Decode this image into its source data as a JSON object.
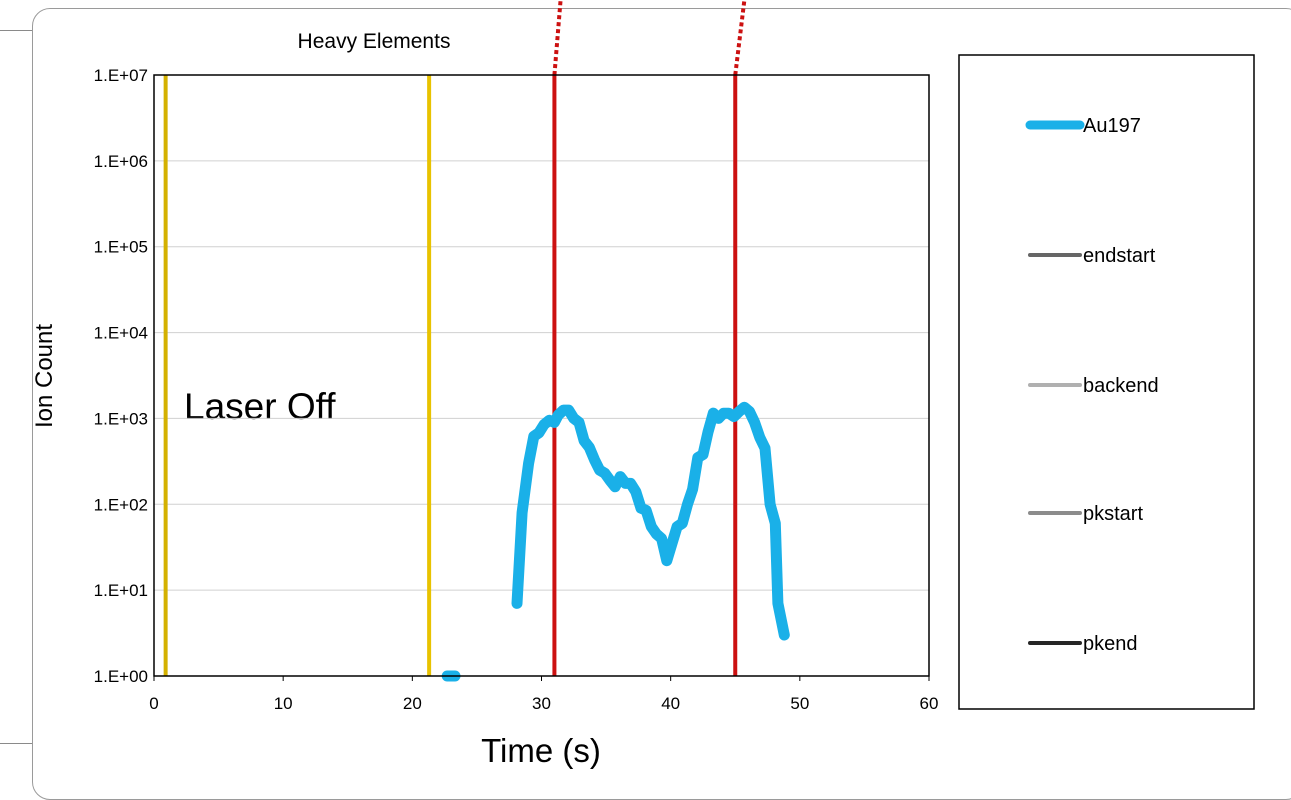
{
  "chart_data": {
    "type": "line",
    "title": "Heavy Elements",
    "xlabel": "Time (s)",
    "ylabel": "Ion Count",
    "yscale": "log",
    "xlim": [
      0,
      60
    ],
    "ylim": [
      1,
      10000000
    ],
    "x_ticks": [
      "0",
      "10",
      "20",
      "30",
      "40",
      "50",
      "60"
    ],
    "y_ticks": [
      "1.E+00",
      "1.E+01",
      "1.E+02",
      "1.E+03",
      "1.E+04",
      "1.E+05",
      "1.E+06",
      "1.E+07"
    ],
    "grid": true,
    "legend_placement": "right",
    "annotation": "Laser Off",
    "series": [
      {
        "name": "Au197",
        "color": "#1ab0e8",
        "points": [
          [
            22.7,
            1
          ],
          [
            23.3,
            1
          ],
          [
            28.1,
            7
          ],
          [
            28.5,
            80
          ],
          [
            29.0,
            300
          ],
          [
            29.4,
            620
          ],
          [
            29.8,
            680
          ],
          [
            30.2,
            850
          ],
          [
            30.6,
            950
          ],
          [
            31.0,
            900
          ],
          [
            31.3,
            1100
          ],
          [
            31.7,
            1250
          ],
          [
            32.1,
            1250
          ],
          [
            32.5,
            1000
          ],
          [
            32.9,
            900
          ],
          [
            33.3,
            550
          ],
          [
            33.7,
            460
          ],
          [
            34.1,
            330
          ],
          [
            34.5,
            250
          ],
          [
            34.9,
            230
          ],
          [
            35.3,
            190
          ],
          [
            35.7,
            160
          ],
          [
            36.1,
            210
          ],
          [
            36.5,
            175
          ],
          [
            36.9,
            175
          ],
          [
            37.3,
            140
          ],
          [
            37.7,
            90
          ],
          [
            38.1,
            85
          ],
          [
            38.5,
            55
          ],
          [
            38.9,
            45
          ],
          [
            39.3,
            40
          ],
          [
            39.7,
            22
          ],
          [
            40.1,
            35
          ],
          [
            40.5,
            55
          ],
          [
            40.9,
            60
          ],
          [
            41.3,
            100
          ],
          [
            41.7,
            150
          ],
          [
            42.1,
            350
          ],
          [
            42.5,
            380
          ],
          [
            42.9,
            700
          ],
          [
            43.3,
            1150
          ],
          [
            43.7,
            1000
          ],
          [
            44.1,
            1150
          ],
          [
            44.5,
            1150
          ],
          [
            44.9,
            1050
          ],
          [
            45.3,
            1200
          ],
          [
            45.7,
            1350
          ],
          [
            46.1,
            1200
          ],
          [
            46.5,
            900
          ],
          [
            46.9,
            600
          ],
          [
            47.3,
            450
          ],
          [
            47.7,
            100
          ],
          [
            48.1,
            60
          ],
          [
            48.3,
            7
          ],
          [
            48.8,
            3
          ]
        ]
      },
      {
        "name": "endstart",
        "color": "#d4b100",
        "points": [
          [
            0.9,
            1
          ],
          [
            0.9,
            10000000
          ]
        ],
        "legend_color": "#666666"
      },
      {
        "name": "backend",
        "color": "#e8c200",
        "points": [
          [
            21.3,
            1
          ],
          [
            21.3,
            10000000
          ]
        ],
        "legend_color": "#b0b0b0"
      },
      {
        "name": "pkstart",
        "color": "#cc1111",
        "points": [
          [
            31.0,
            1
          ],
          [
            31.0,
            10000000
          ]
        ],
        "legend_color": "#8c8c8c"
      },
      {
        "name": "pkend",
        "color": "#cc1111",
        "points": [
          [
            45.0,
            1
          ],
          [
            45.0,
            10000000
          ]
        ],
        "legend_color": "#262626"
      }
    ]
  }
}
